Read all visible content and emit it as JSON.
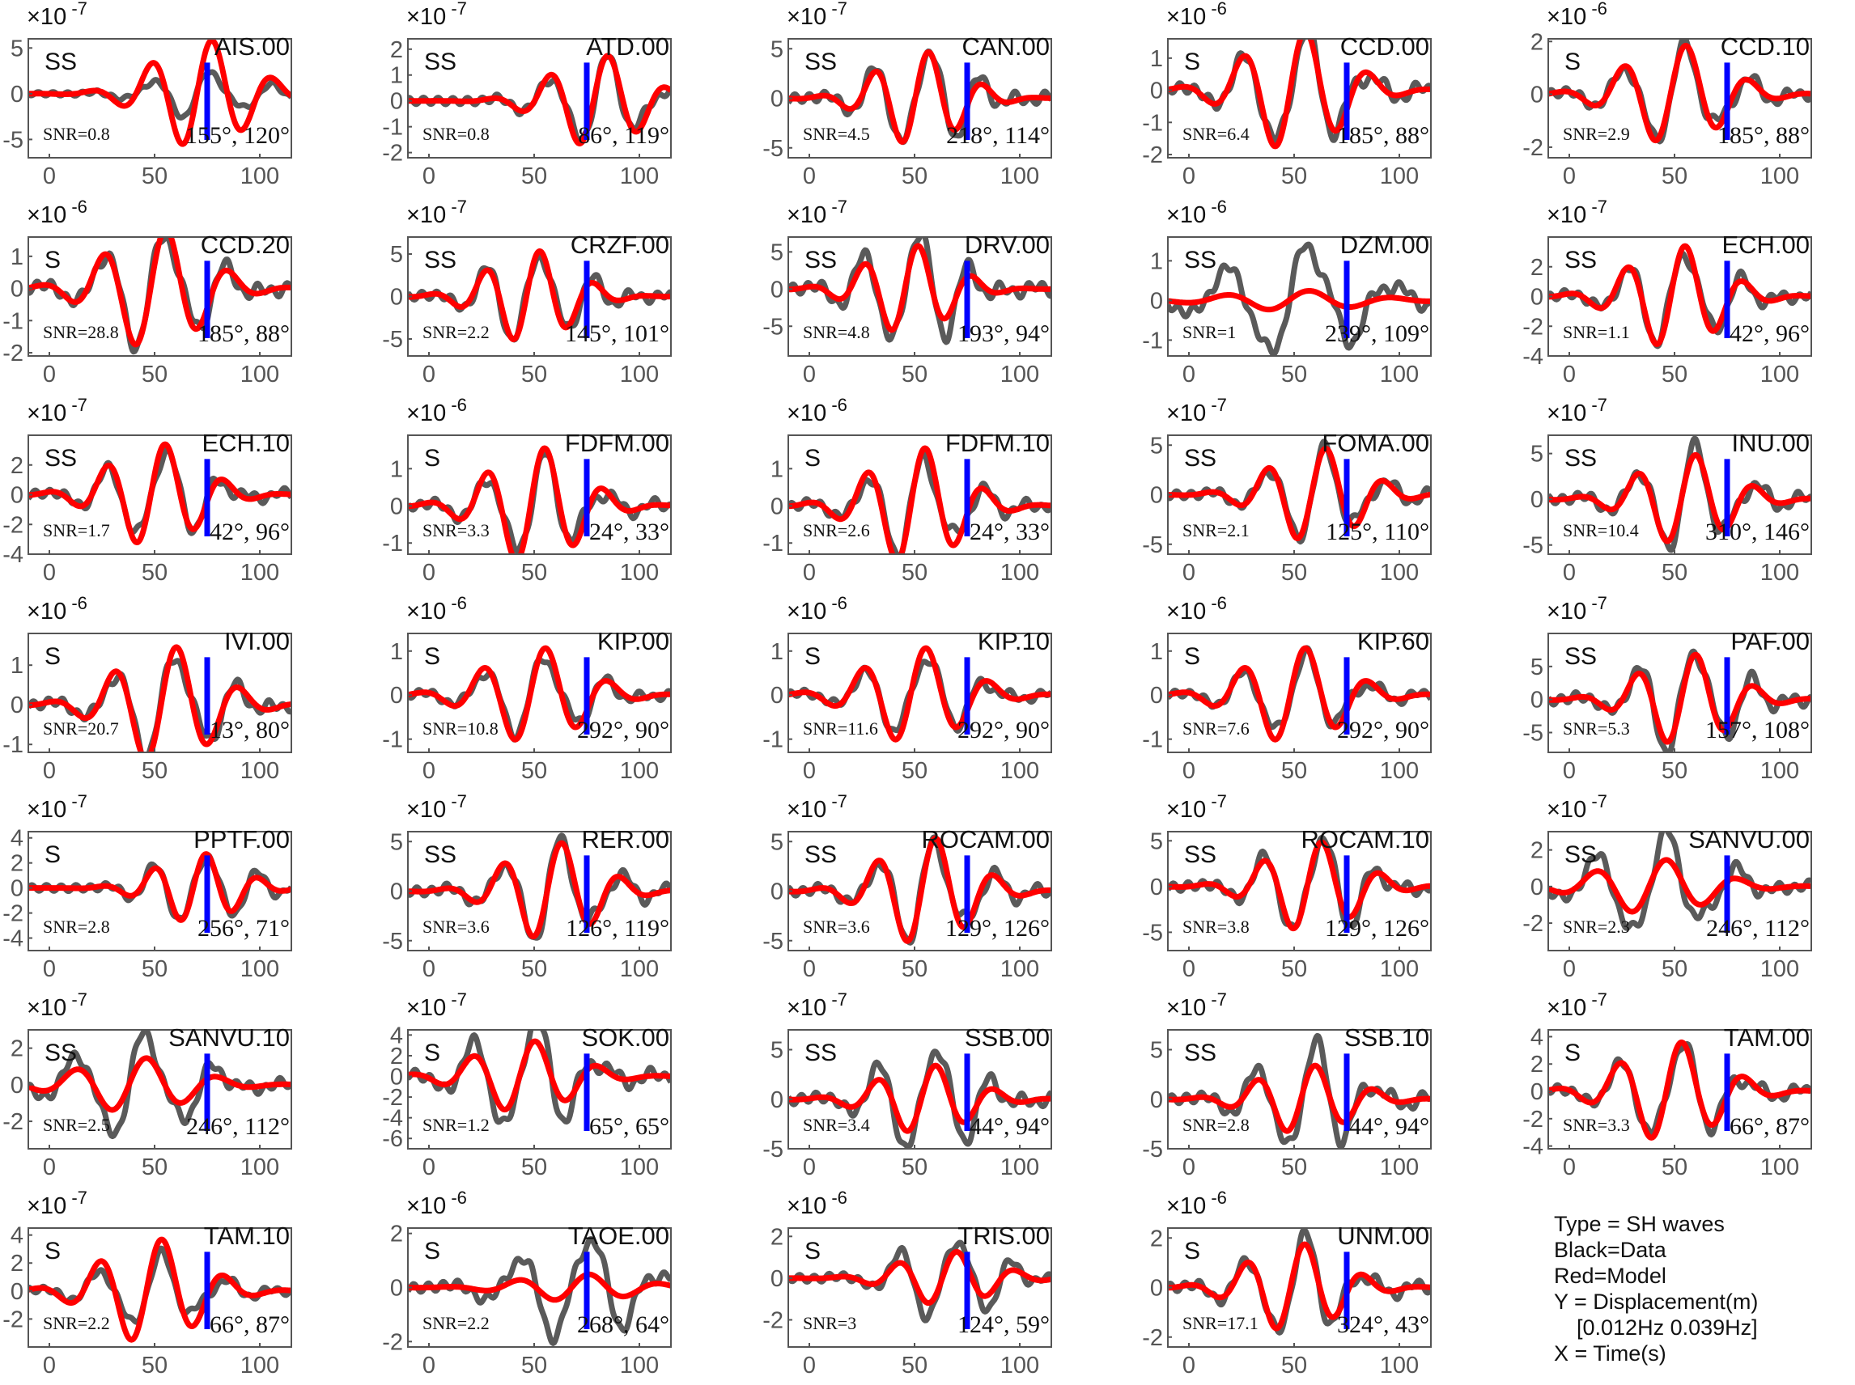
{
  "legend": {
    "type": "Type = SH waves",
    "black": "Black=Data",
    "red": "Red=Model",
    "y": "Y = Displacement(m)",
    "band": "[0.012Hz 0.039Hz]",
    "x": "X = Time(s)"
  },
  "colors": {
    "data": "#5a5a5a",
    "model": "#ff0000",
    "marker": "#0000ff",
    "axis": "#555555"
  },
  "chart_data": {
    "type": "line",
    "xlim": [
      -10,
      115
    ],
    "xticks": [
      0,
      50,
      100
    ],
    "series_names": [
      "Data",
      "Model"
    ],
    "panels": [
      {
        "station": "AIS.00",
        "phase": "SS",
        "snr": "SNR=0.8",
        "angles": "155°, 120°",
        "exponent": "-7",
        "yticks": [
          5,
          0,
          -5
        ],
        "ylim": [
          -7,
          6
        ],
        "data_amp": 2.5,
        "model_amp": 6,
        "center": 72,
        "period": 29,
        "marker_t": 75
      },
      {
        "station": "ATD.00",
        "phase": "SS",
        "snr": "SNR=0.8",
        "angles": "86°, 119°",
        "exponent": "-7",
        "yticks": [
          2,
          1,
          0,
          -1,
          -2
        ],
        "ylim": [
          -2.2,
          2.4
        ],
        "data_amp": 1.6,
        "model_amp": 1.8,
        "center": 80,
        "period": 28,
        "marker_t": 75
      },
      {
        "station": "CAN.00",
        "phase": "SS",
        "snr": "SNR=4.5",
        "angles": "218°, 114°",
        "exponent": "-7",
        "yticks": [
          5,
          0,
          -5
        ],
        "ylim": [
          -6,
          6
        ],
        "data_amp": 5.2,
        "model_amp": 4.8,
        "center": 52,
        "period": 26,
        "marker_t": 75
      },
      {
        "station": "CCD.00",
        "phase": "S",
        "snr": "SNR=6.4",
        "angles": "185°, 88°",
        "exponent": "-6",
        "yticks": [
          1,
          0,
          -1,
          -2
        ],
        "ylim": [
          -2.1,
          1.6
        ],
        "data_amp": 1.8,
        "model_amp": 1.9,
        "center": 50,
        "period": 30,
        "marker_t": 75
      },
      {
        "station": "CCD.10",
        "phase": "S",
        "snr": "SNR=2.9",
        "angles": "185°, 88°",
        "exponent": "-6",
        "yticks": [
          2,
          0,
          -2
        ],
        "ylim": [
          -2.4,
          2.1
        ],
        "data_amp": 1.8,
        "model_amp": 1.9,
        "center": 50,
        "period": 30,
        "marker_t": 75
      },
      {
        "station": "CCD.20",
        "phase": "S",
        "snr": "SNR=28.8",
        "angles": "185°, 88°",
        "exponent": "-6",
        "yticks": [
          1,
          0,
          -1,
          -2
        ],
        "ylim": [
          -2.1,
          1.6
        ],
        "data_amp": 1.8,
        "model_amp": 1.9,
        "center": 50,
        "period": 30,
        "marker_t": 75
      },
      {
        "station": "CRZF.00",
        "phase": "SS",
        "snr": "SNR=2.2",
        "angles": "145°, 101°",
        "exponent": "-7",
        "yticks": [
          5,
          0,
          -5
        ],
        "ylim": [
          -7,
          7
        ],
        "data_amp": 5.5,
        "model_amp": 5.5,
        "center": 48,
        "period": 26,
        "marker_t": 75
      },
      {
        "station": "DRV.00",
        "phase": "SS",
        "snr": "SNR=4.8",
        "angles": "193°, 94°",
        "exponent": "-7",
        "yticks": [
          5,
          0,
          -5
        ],
        "ylim": [
          -9,
          7
        ],
        "data_amp": 8,
        "model_amp": 6,
        "center": 47,
        "period": 26,
        "marker_t": 75
      },
      {
        "station": "DZM.00",
        "phase": "SS",
        "snr": "SNR=1",
        "angles": "239°, 109°",
        "exponent": "-6",
        "yticks": [
          1,
          0,
          -1
        ],
        "ylim": [
          -1.4,
          1.6
        ],
        "data_amp": 1.4,
        "model_amp": 0.25,
        "center": 50,
        "period": 40,
        "marker_t": 75
      },
      {
        "station": "ECH.00",
        "phase": "SS",
        "snr": "SNR=1.1",
        "angles": "42°, 96°",
        "exponent": "-7",
        "yticks": [
          2,
          0,
          -2,
          -4
        ],
        "ylim": [
          -4,
          4
        ],
        "data_amp": 3.2,
        "model_amp": 3.5,
        "center": 50,
        "period": 28,
        "marker_t": 75
      },
      {
        "station": "ECH.10",
        "phase": "SS",
        "snr": "SNR=1.7",
        "angles": "42°, 96°",
        "exponent": "-7",
        "yticks": [
          2,
          0,
          -2,
          -4
        ],
        "ylim": [
          -4,
          4
        ],
        "data_amp": 3,
        "model_amp": 3.5,
        "center": 50,
        "period": 28,
        "marker_t": 75
      },
      {
        "station": "FDFM.00",
        "phase": "S",
        "snr": "SNR=3.3",
        "angles": "24°, 33°",
        "exponent": "-6",
        "yticks": [
          1,
          0,
          -1
        ],
        "ylim": [
          -1.3,
          1.9
        ],
        "data_amp": 1.3,
        "model_amp": 1.6,
        "center": 50,
        "period": 28,
        "marker_t": 75
      },
      {
        "station": "FDFM.10",
        "phase": "S",
        "snr": "SNR=2.6",
        "angles": "24°, 33°",
        "exponent": "-6",
        "yticks": [
          1,
          0,
          -1
        ],
        "ylim": [
          -1.3,
          1.9
        ],
        "data_amp": 1.3,
        "model_amp": 1.6,
        "center": 50,
        "period": 28,
        "marker_t": 75
      },
      {
        "station": "FOMA.00",
        "phase": "SS",
        "snr": "SNR=2.1",
        "angles": "125°, 110°",
        "exponent": "-7",
        "yticks": [
          5,
          0,
          -5
        ],
        "ylim": [
          -6,
          6
        ],
        "data_amp": 4.5,
        "model_amp": 4.8,
        "center": 60,
        "period": 28,
        "marker_t": 75
      },
      {
        "station": "INU.00",
        "phase": "SS",
        "snr": "SNR=10.4",
        "angles": "310°, 146°",
        "exponent": "-7",
        "yticks": [
          5,
          0,
          -5
        ],
        "ylim": [
          -6,
          7
        ],
        "data_amp": 5.5,
        "model_amp": 5,
        "center": 55,
        "period": 28,
        "marker_t": 75
      },
      {
        "station": "IVI.00",
        "phase": "S",
        "snr": "SNR=20.7",
        "angles": "13°, 80°",
        "exponent": "-6",
        "yticks": [
          1,
          0,
          -1
        ],
        "ylim": [
          -1.2,
          1.8
        ],
        "data_amp": 1.3,
        "model_amp": 1.5,
        "center": 55,
        "period": 30,
        "marker_t": 75
      },
      {
        "station": "KIP.00",
        "phase": "S",
        "snr": "SNR=10.8",
        "angles": "292°, 90°",
        "exponent": "-6",
        "yticks": [
          1,
          0,
          -1
        ],
        "ylim": [
          -1.3,
          1.4
        ],
        "data_amp": 0.9,
        "model_amp": 1.1,
        "center": 50,
        "period": 30,
        "marker_t": 75
      },
      {
        "station": "KIP.10",
        "phase": "S",
        "snr": "SNR=11.6",
        "angles": "292°, 90°",
        "exponent": "-6",
        "yticks": [
          1,
          0,
          -1
        ],
        "ylim": [
          -1.3,
          1.4
        ],
        "data_amp": 0.9,
        "model_amp": 1.1,
        "center": 50,
        "period": 30,
        "marker_t": 75
      },
      {
        "station": "KIP.60",
        "phase": "S",
        "snr": "SNR=7.6",
        "angles": "292°, 90°",
        "exponent": "-6",
        "yticks": [
          1,
          0,
          -1
        ],
        "ylim": [
          -1.3,
          1.4
        ],
        "data_amp": 0.9,
        "model_amp": 1.1,
        "center": 50,
        "period": 30,
        "marker_t": 75
      },
      {
        "station": "PAF.00",
        "phase": "SS",
        "snr": "SNR=5.3",
        "angles": "157°, 108°",
        "exponent": "-7",
        "yticks": [
          5,
          0,
          -5
        ],
        "ylim": [
          -8,
          10
        ],
        "data_amp": 8,
        "model_amp": 7,
        "center": 55,
        "period": 28,
        "marker_t": 75
      },
      {
        "station": "PPTF.00",
        "phase": "S",
        "snr": "SNR=2.8",
        "angles": "256°, 71°",
        "exponent": "-7",
        "yticks": [
          4,
          2,
          0,
          -2,
          -4
        ],
        "ylim": [
          -5,
          4.5
        ],
        "data_amp": 3,
        "model_amp": 2.8,
        "center": 70,
        "period": 25,
        "marker_t": 75
      },
      {
        "station": "RER.00",
        "phase": "SS",
        "snr": "SNR=3.6",
        "angles": "126°, 119°",
        "exponent": "-7",
        "yticks": [
          5,
          0,
          -5
        ],
        "ylim": [
          -6,
          6
        ],
        "data_amp": 5,
        "model_amp": 5,
        "center": 58,
        "period": 28,
        "marker_t": 75
      },
      {
        "station": "ROCAM.00",
        "phase": "SS",
        "snr": "SNR=3.6",
        "angles": "129°, 126°",
        "exponent": "-7",
        "yticks": [
          5,
          0,
          -5
        ],
        "ylim": [
          -6,
          6
        ],
        "data_amp": 5,
        "model_amp": 5.5,
        "center": 55,
        "period": 28,
        "marker_t": 75
      },
      {
        "station": "ROCAM.10",
        "phase": "SS",
        "snr": "SNR=3.8",
        "angles": "129°, 126°",
        "exponent": "-7",
        "yticks": [
          5,
          0,
          -5
        ],
        "ylim": [
          -7,
          6
        ],
        "data_amp": 5.5,
        "model_amp": 5,
        "center": 58,
        "period": 28,
        "marker_t": 75
      },
      {
        "station": "SANVU.00",
        "phase": "SS",
        "snr": "SNR=2.3",
        "angles": "246°, 112°",
        "exponent": "-7",
        "yticks": [
          2,
          0,
          -2
        ],
        "ylim": [
          -3.5,
          3
        ],
        "data_amp": 2.8,
        "model_amp": 1.5,
        "center": 40,
        "period": 34,
        "marker_t": 75
      },
      {
        "station": "SANVU.10",
        "phase": "SS",
        "snr": "SNR=2.5",
        "angles": "246°, 112°",
        "exponent": "-7",
        "yticks": [
          2,
          0,
          -2
        ],
        "ylim": [
          -3.5,
          3
        ],
        "data_amp": 2.8,
        "model_amp": 1.5,
        "center": 40,
        "period": 34,
        "marker_t": 75
      },
      {
        "station": "SOK.00",
        "phase": "S",
        "snr": "SNR=1.2",
        "angles": "65°, 65°",
        "exponent": "-7",
        "yticks": [
          4,
          2,
          0,
          -2,
          -4,
          -6
        ],
        "ylim": [
          -7,
          4.5
        ],
        "data_amp": 5.5,
        "model_amp": 3.5,
        "center": 45,
        "period": 30,
        "marker_t": 75
      },
      {
        "station": "SSB.00",
        "phase": "SS",
        "snr": "SNR=3.4",
        "angles": "44°, 94°",
        "exponent": "-7",
        "yticks": [
          5,
          0,
          -5
        ],
        "ylim": [
          -5,
          7
        ],
        "data_amp": 5.5,
        "model_amp": 3.5,
        "center": 55,
        "period": 28,
        "marker_t": 75
      },
      {
        "station": "SSB.10",
        "phase": "SS",
        "snr": "SNR=2.8",
        "angles": "44°, 94°",
        "exponent": "-7",
        "yticks": [
          5,
          0,
          -5
        ],
        "ylim": [
          -5,
          7
        ],
        "data_amp": 5.5,
        "model_amp": 3.5,
        "center": 55,
        "period": 28,
        "marker_t": 75
      },
      {
        "station": "TAM.00",
        "phase": "S",
        "snr": "SNR=3.3",
        "angles": "66°, 87°",
        "exponent": "-7",
        "yticks": [
          4,
          2,
          0,
          -2,
          -4
        ],
        "ylim": [
          -4.2,
          4.5
        ],
        "data_amp": 3.5,
        "model_amp": 3.7,
        "center": 48,
        "period": 30,
        "marker_t": 75
      },
      {
        "station": "TAM.10",
        "phase": "S",
        "snr": "SNR=2.2",
        "angles": "66°, 87°",
        "exponent": "-7",
        "yticks": [
          4,
          2,
          0,
          -2
        ],
        "ylim": [
          -4,
          4.5
        ],
        "data_amp": 2.5,
        "model_amp": 3.8,
        "center": 48,
        "period": 30,
        "marker_t": 75
      },
      {
        "station": "TAOE.00",
        "phase": "S",
        "snr": "SNR=2.2",
        "angles": "268°, 64°",
        "exponent": "-6",
        "yticks": [
          2,
          0,
          -2
        ],
        "ylim": [
          -2.2,
          2.2
        ],
        "data_amp": 1.9,
        "model_amp": 0.5,
        "center": 70,
        "period": 34,
        "marker_t": 75
      },
      {
        "station": "TRIS.00",
        "phase": "S",
        "snr": "SNR=3",
        "angles": "124°, 59°",
        "exponent": "-6",
        "yticks": [
          2,
          0,
          -2
        ],
        "ylim": [
          -3.3,
          2.4
        ],
        "data_amp": 2,
        "model_amp": 1.3,
        "center": 65,
        "period": 28,
        "marker_t": 75
      },
      {
        "station": "UNM.00",
        "phase": "S",
        "snr": "SNR=17.1",
        "angles": "324°, 43°",
        "exponent": "-6",
        "yticks": [
          2,
          0,
          -2
        ],
        "ylim": [
          -2.4,
          2.4
        ],
        "data_amp": 2,
        "model_amp": 1.8,
        "center": 50,
        "period": 28,
        "marker_t": 75
      }
    ]
  }
}
